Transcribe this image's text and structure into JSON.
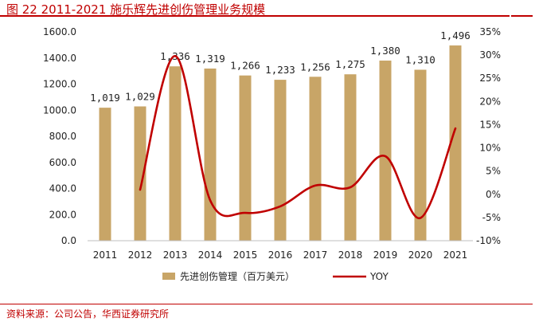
{
  "header": {
    "title": "图 22 2011-2021 施乐辉先进创伤管理业务规模"
  },
  "footer": {
    "source": "资料来源：公司公告，华西证券研究所"
  },
  "colors": {
    "bar": "#c8a567",
    "line": "#c00000",
    "accent": "#c00000"
  },
  "chart_data": {
    "type": "bar",
    "title": "2011-2021 施乐辉先进创伤管理业务规模",
    "categories": [
      "2011",
      "2012",
      "2013",
      "2014",
      "2015",
      "2016",
      "2017",
      "2018",
      "2019",
      "2020",
      "2021"
    ],
    "series": [
      {
        "name": "先进创伤管理（百万美元）",
        "type": "bar",
        "axis": "left",
        "values": [
          1019,
          1029,
          1336,
          1319,
          1266,
          1233,
          1256,
          1275,
          1380,
          1310,
          1496
        ],
        "labels": [
          "1,019",
          "1,029",
          "1,336",
          "1,319",
          "1,266",
          "1,233",
          "1,256",
          "1,275",
          "1,380",
          "1,310",
          "1,496"
        ]
      },
      {
        "name": "YOY",
        "type": "line",
        "axis": "right",
        "values": [
          null,
          1.0,
          29.8,
          -1.3,
          -4.0,
          -2.6,
          1.9,
          1.5,
          8.2,
          -5.1,
          14.2
        ]
      }
    ],
    "y_left": {
      "ylim": [
        0,
        1600
      ],
      "ticks": [
        0,
        200,
        400,
        600,
        800,
        1000,
        1200,
        1400,
        1600
      ],
      "tick_labels": [
        "0.0",
        "200.0",
        "400.0",
        "600.0",
        "800.0",
        "1000.0",
        "1200.0",
        "1400.0",
        "1600.0"
      ]
    },
    "y_right": {
      "ylim": [
        -10,
        35
      ],
      "ticks": [
        -10,
        -5,
        0,
        5,
        10,
        15,
        20,
        25,
        30,
        35
      ],
      "tick_labels": [
        "-10%",
        "-5%",
        "0%",
        "5%",
        "10%",
        "15%",
        "20%",
        "25%",
        "30%",
        "35%"
      ]
    },
    "legend": {
      "position": "bottom",
      "entries": [
        "先进创伤管理（百万美元）",
        "YOY"
      ]
    }
  }
}
